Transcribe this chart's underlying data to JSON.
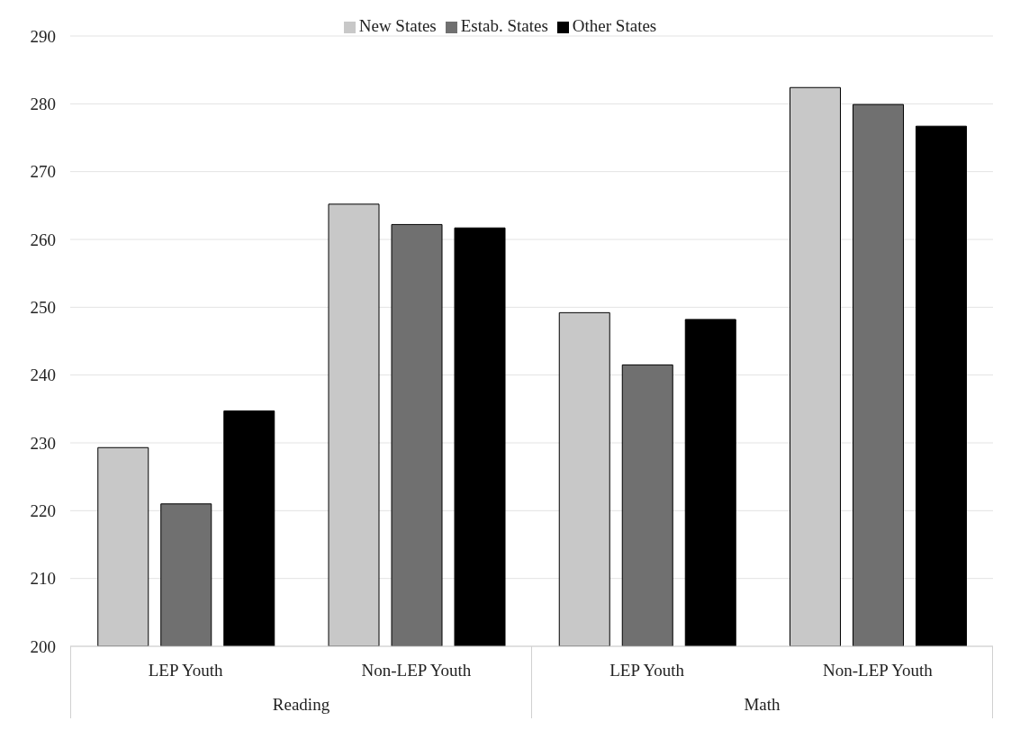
{
  "chart_data": {
    "type": "bar",
    "categories": [
      "LEP Youth",
      "Non-LEP Youth",
      "LEP Youth",
      "Non-LEP Youth"
    ],
    "series": [
      {
        "name": "New States",
        "color": "#c8c8c8",
        "values": [
          229.3,
          265.2,
          249.2,
          282.4
        ]
      },
      {
        "name": "Estab. States",
        "color": "#707070",
        "values": [
          221.0,
          262.2,
          241.5,
          279.9
        ]
      },
      {
        "name": "Other States",
        "color": "#000000",
        "values": [
          234.7,
          261.7,
          248.2,
          276.7
        ]
      }
    ],
    "ylim": [
      200,
      290
    ],
    "yticks": [
      200,
      210,
      220,
      230,
      240,
      250,
      260,
      270,
      280,
      290
    ],
    "grid": "y",
    "legend": "top",
    "annotations": [
      "Reading",
      "Math"
    ]
  }
}
